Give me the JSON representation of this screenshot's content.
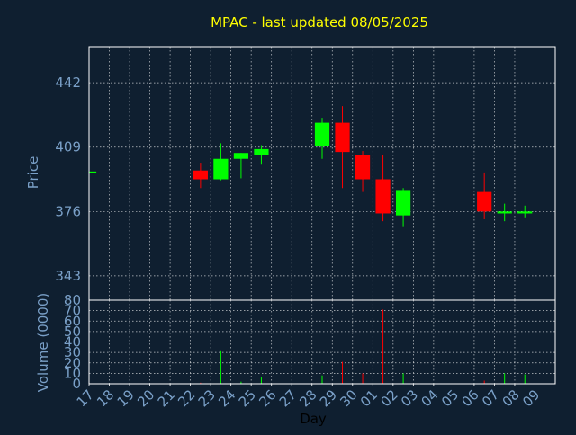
{
  "chart_data": {
    "type": "candlestick",
    "title": "MPAC - last updated 08/05/2025",
    "xlabel": "Day",
    "colors": {
      "background": "#0f1f30",
      "title": "#ffff00",
      "axis_text": "#7aa0c8",
      "frame": "#ffffff",
      "up": "#00ff00",
      "down": "#ff0000"
    },
    "grid": true,
    "x_ticks": [
      "17",
      "18",
      "19",
      "20",
      "21",
      "22",
      "23",
      "24",
      "25",
      "26",
      "27",
      "28",
      "29",
      "30",
      "01",
      "02",
      "03",
      "04",
      "05",
      "06",
      "07",
      "08",
      "09"
    ],
    "price_panel": {
      "ylabel": "Price",
      "yticks": [
        343,
        376,
        409,
        442
      ],
      "ylim": [
        330.5,
        460.5
      ]
    },
    "volume_panel": {
      "ylabel": "Volume (0000)",
      "yticks": [
        0,
        10,
        20,
        30,
        40,
        50,
        60,
        70,
        80
      ],
      "ylim": [
        0,
        80
      ]
    },
    "candles": [
      {
        "day": "17",
        "open": 396.5,
        "high": 396.5,
        "low": 396.5,
        "close": 396.5,
        "volume": 0
      },
      {
        "day": "22",
        "open": 397,
        "high": 401,
        "low": 388,
        "close": 392.5,
        "volume": 1
      },
      {
        "day": "23",
        "open": 392.5,
        "high": 411,
        "low": 392,
        "close": 403,
        "volume": 32
      },
      {
        "day": "24",
        "open": 403,
        "high": 406,
        "low": 393,
        "close": 406,
        "volume": 2
      },
      {
        "day": "25",
        "open": 405,
        "high": 410,
        "low": 400,
        "close": 408,
        "volume": 6
      },
      {
        "day": "28",
        "open": 409.5,
        "high": 424,
        "low": 403,
        "close": 421.5,
        "volume": 8
      },
      {
        "day": "29",
        "open": 421.5,
        "high": 430,
        "low": 388,
        "close": 406.5,
        "volume": 21
      },
      {
        "day": "30",
        "open": 405,
        "high": 407,
        "low": 386,
        "close": 392.5,
        "volume": 10
      },
      {
        "day": "01",
        "open": 392.5,
        "high": 405,
        "low": 371,
        "close": 375,
        "volume": 71
      },
      {
        "day": "02",
        "open": 374,
        "high": 388,
        "low": 368,
        "close": 387,
        "volume": 10
      },
      {
        "day": "06",
        "open": 386,
        "high": 396,
        "low": 372,
        "close": 376,
        "volume": 3
      },
      {
        "day": "07",
        "open": 375,
        "high": 380,
        "low": 371,
        "close": 376,
        "volume": 10
      },
      {
        "day": "08",
        "open": 375,
        "high": 379,
        "low": 373,
        "close": 376,
        "volume": 9
      }
    ]
  }
}
